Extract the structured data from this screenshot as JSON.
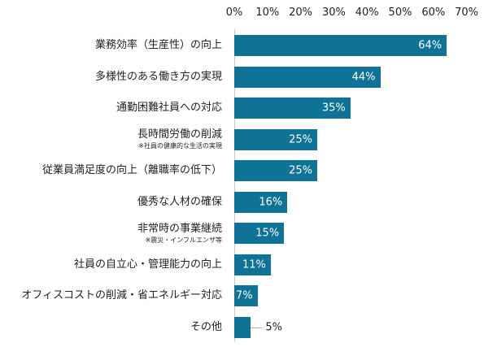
{
  "chart_data": {
    "type": "bar",
    "orientation": "horizontal",
    "xlim": [
      0,
      70
    ],
    "ticks": [
      "0%",
      "10%",
      "20%",
      "30%",
      "40%",
      "50%",
      "60%",
      "70%"
    ],
    "tick_values": [
      0,
      10,
      20,
      30,
      40,
      50,
      60,
      70
    ],
    "grid": false,
    "bar_color": "#0f7397",
    "categories": [
      {
        "label": "業務効率（生産性）の向上",
        "note": ""
      },
      {
        "label": "多様性のある働き方の実現",
        "note": ""
      },
      {
        "label": "通勤困難社員への対応",
        "note": ""
      },
      {
        "label": "長時間労働の削減",
        "note": "※社員の健康的な生活の実現"
      },
      {
        "label": "従業員満足度の向上（離職率の低下）",
        "note": ""
      },
      {
        "label": "優秀な人材の確保",
        "note": ""
      },
      {
        "label": "非常時の事業継続",
        "note": "※震災・インフルエンザ等"
      },
      {
        "label": "社員の自立心・管理能力の向上",
        "note": ""
      },
      {
        "label": "オフィスコストの削減・省エネルギー対応",
        "note": ""
      },
      {
        "label": "その他",
        "note": ""
      }
    ],
    "values": [
      64,
      44,
      35,
      25,
      25,
      16,
      15,
      11,
      7,
      5
    ],
    "value_labels": [
      "64%",
      "44%",
      "35%",
      "25%",
      "25%",
      "16%",
      "15%",
      "11%",
      "7%",
      "5%"
    ]
  }
}
